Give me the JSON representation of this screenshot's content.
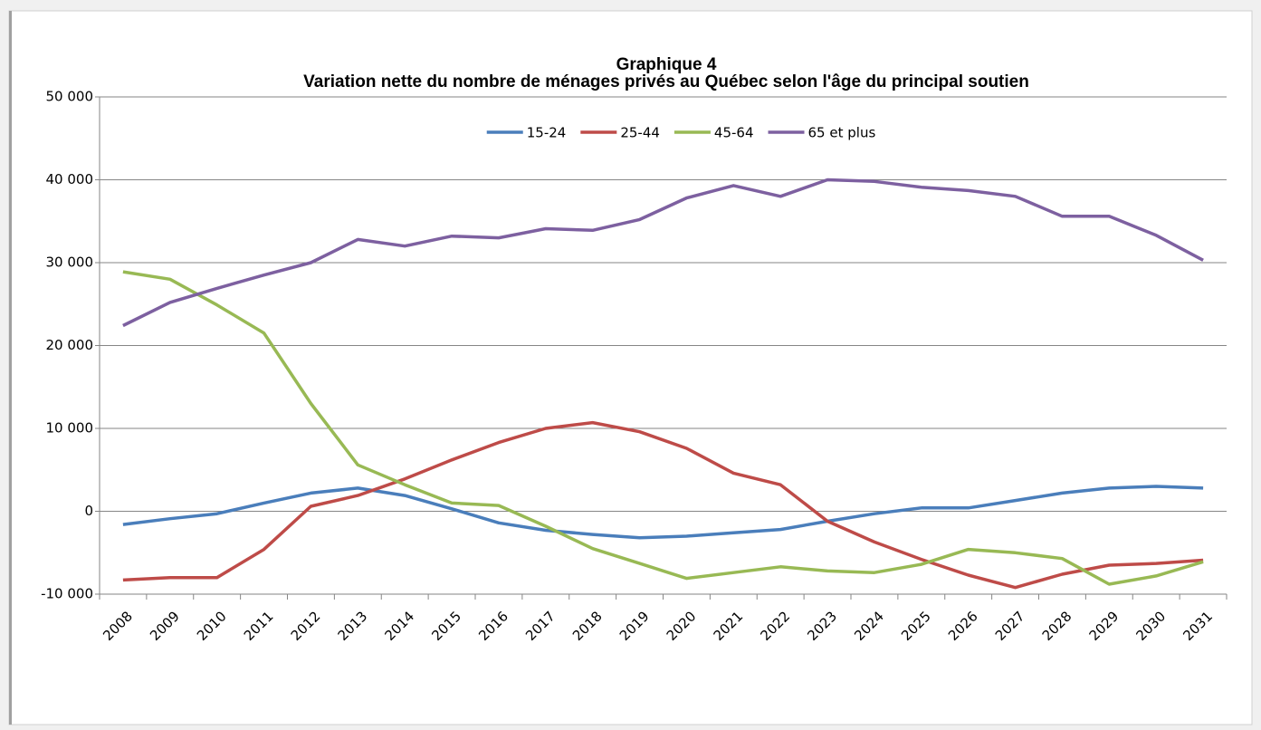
{
  "chart_data": {
    "type": "line",
    "title": "Graphique 4",
    "subtitle": "Variation nette du nombre de ménages privés au Québec selon l'âge du principal soutien",
    "categories": [
      "2008",
      "2009",
      "2010",
      "2011",
      "2012",
      "2013",
      "2014",
      "2015",
      "2016",
      "2017",
      "2018",
      "2019",
      "2020",
      "2021",
      "2022",
      "2023",
      "2024",
      "2025",
      "2026",
      "2027",
      "2028",
      "2029",
      "2030",
      "2031"
    ],
    "series": [
      {
        "name": "15-24",
        "color": "#4a7ebb",
        "values": [
          -1600,
          -900,
          -300,
          1000,
          2200,
          2800,
          1900,
          300,
          -1400,
          -2300,
          -2800,
          -3200,
          -3000,
          -2600,
          -2200,
          -1200,
          -300,
          400,
          400,
          1300,
          2200,
          2800,
          3000,
          2800
        ]
      },
      {
        "name": "25-44",
        "color": "#be4b48",
        "values": [
          -8300,
          -8000,
          -8000,
          -4600,
          600,
          1900,
          3900,
          6200,
          8300,
          10000,
          10700,
          9600,
          7600,
          4600,
          3200,
          -1200,
          -3700,
          -5800,
          -7700,
          -9200,
          -7600,
          -6500,
          -6300,
          -5900
        ]
      },
      {
        "name": "45-64",
        "color": "#98b954",
        "values": [
          28900,
          28000,
          24900,
          21500,
          13000,
          5600,
          3200,
          1000,
          700,
          -1800,
          -4500,
          -6300,
          -8100,
          -7400,
          -6700,
          -7200,
          -7400,
          -6400,
          -4600,
          -5000,
          -5700,
          -8800,
          -7800,
          -6100
        ]
      },
      {
        "name": "65 et plus",
        "color": "#7d60a0",
        "values": [
          22400,
          25200,
          26900,
          28500,
          30000,
          32800,
          32000,
          33200,
          33000,
          34100,
          33900,
          35200,
          37800,
          39300,
          38000,
          40000,
          39800,
          39100,
          38700,
          38000,
          35600,
          35600,
          33300,
          30300
        ]
      }
    ],
    "ylim": [
      -10000,
      50000
    ],
    "yticks": [
      {
        "value": -10000,
        "label": "-10 000"
      },
      0,
      {
        "value": 10000,
        "label": "10 000"
      },
      {
        "value": 20000,
        "label": "20 000"
      },
      {
        "value": 30000,
        "label": "30 000"
      },
      {
        "value": 40000,
        "label": "40 000"
      },
      {
        "value": 50000,
        "label": "50 000"
      }
    ],
    "grid": true,
    "legend": "top"
  }
}
